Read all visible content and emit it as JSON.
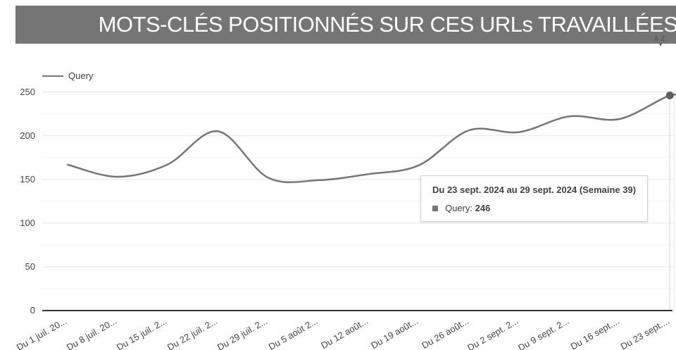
{
  "header": {
    "title": "MOTS-CLÉS POSITIONNÉS SUR CES URLs TRAVAILLÉES",
    "sort_icon": {
      "letters": "AZ",
      "arrow": "▾"
    }
  },
  "colors": {
    "banner_bg": "#757575",
    "banner_text": "#ffffff",
    "line": "#757575",
    "marker": "#5f5f5f",
    "grid_major": "#e6e6e6",
    "grid_minor": "#f4f4f4",
    "axis_line": "#333333",
    "axis_text": "#444444",
    "focus_line": "#e0e0e0",
    "tooltip_border": "#d2d2d2",
    "tooltip_text": "#424242",
    "swatch": "#757575"
  },
  "chart_data": {
    "type": "line",
    "title": "MOTS-CLÉS POSITIONNÉS SUR CES URLs TRAVAILLÉES",
    "categories": [
      "Du 1 juil. 20...",
      "Du 8 juil. 20...",
      "Du 15 juil. 2...",
      "Du 22 juil. 2...",
      "Du 29 juil. 2...",
      "Du 5 août 2...",
      "Du 12 août...",
      "Du 19 août...",
      "Du 26 août...",
      "Du 2 sept. 2...",
      "Du 9 sept. 2...",
      "Du 16 sept....",
      "Du 23 sept...."
    ],
    "series": [
      {
        "name": "Query",
        "values": [
          167,
          153,
          167,
          205,
          152,
          149,
          156,
          166,
          206,
          204,
          222,
          219,
          246
        ]
      }
    ],
    "xlabel": "",
    "ylabel": "",
    "ylim": [
      0,
      250
    ],
    "yticks": [
      0,
      50,
      100,
      150,
      200,
      250
    ],
    "minor_yticks": [
      25,
      75,
      125,
      175,
      225
    ],
    "grid": true,
    "smooth": true,
    "legend_position": "top-left",
    "highlighted_index": 12
  },
  "tooltip": {
    "title": "Du 23 sept. 2024 au 29 sept. 2024 (Semaine 39)",
    "series_label": "Query:",
    "value": "246"
  }
}
